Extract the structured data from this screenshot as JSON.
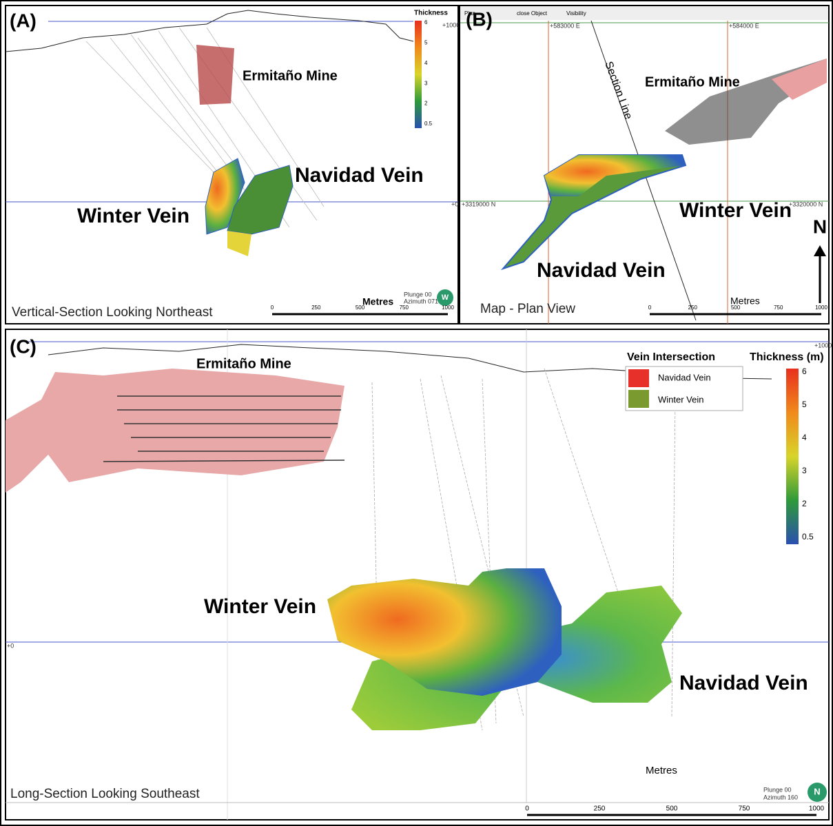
{
  "panel_a": {
    "label": "(A)",
    "mine": "Ermitaño Mine",
    "navidad": "Navidad Vein",
    "winter": "Winter Vein",
    "caption": "Vertical-Section Looking Northeast",
    "metres": "Metres",
    "scale": [
      "0",
      "250",
      "500",
      "750",
      "1000"
    ],
    "plunge": "Plunge 00",
    "azimuth": "Azimuth 071",
    "compass": "W",
    "legend_title": "Thickness",
    "legend_ticks": [
      "6",
      "5",
      "4",
      "3",
      "2",
      "0.5"
    ],
    "top_level": "+1000",
    "zero_level": "+0"
  },
  "panel_b": {
    "label": "(B)",
    "toolbar": [
      "Plan",
      "close Object",
      "Visibility"
    ],
    "section_line": "Section Line",
    "mine": "Ermitaño Mine",
    "winter": "Winter Vein",
    "navidad": "Navidad Vein",
    "north": "N",
    "caption": "Map - Plan View",
    "metres": "Metres",
    "scale": [
      "0",
      "250",
      "500",
      "750",
      "1000"
    ],
    "easting_1": "+583000 E",
    "easting_2": "+584000 E",
    "northing_1": "+3319000 N",
    "northing_2": "+3320000 N"
  },
  "panel_c": {
    "label": "(C)",
    "mine": "Ermitaño Mine",
    "legend_title": "Vein Intersection",
    "legend_items": [
      "Navidad Vein",
      "Winter Vein"
    ],
    "thickness_title": "Thickness (m)",
    "thickness_ticks": [
      "6",
      "5",
      "4",
      "3",
      "2",
      "0.5"
    ],
    "winter": "Winter Vein",
    "navidad": "Navidad Vein",
    "metres": "Metres",
    "caption": "Long-Section Looking Southeast",
    "plunge": "Plunge 00",
    "azimuth": "Azimuth 160",
    "compass": "N",
    "scale": [
      "0",
      "250",
      "500",
      "750",
      "1000"
    ],
    "top_level": "+1000",
    "zero_level": "+0"
  }
}
